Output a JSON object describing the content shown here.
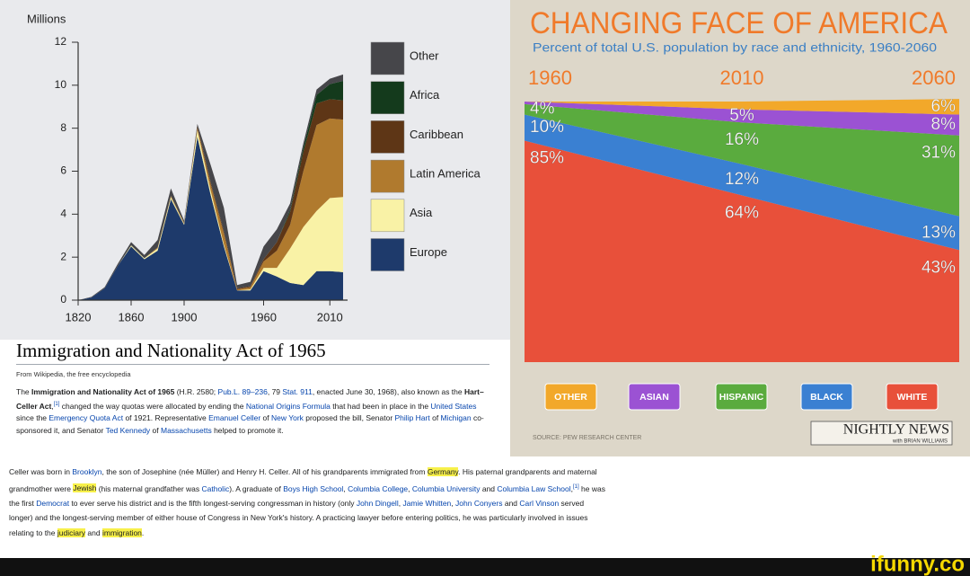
{
  "chart_data": [
    {
      "type": "area",
      "stacked": true,
      "ylabel": "Millions",
      "x": [
        1820,
        1830,
        1840,
        1850,
        1860,
        1870,
        1880,
        1890,
        1900,
        1910,
        1920,
        1930,
        1940,
        1950,
        1960,
        1970,
        1980,
        1990,
        2000,
        2010,
        2020
      ],
      "xlim": [
        1820,
        2020
      ],
      "xticks": [
        1820,
        1860,
        1900,
        1960,
        2010
      ],
      "ylim": [
        0,
        12
      ],
      "yticks": [
        0,
        2,
        4,
        6,
        8,
        10,
        12
      ],
      "series": [
        {
          "name": "Europe",
          "color": "#1e3a6b",
          "values": [
            0,
            0.12,
            0.55,
            1.6,
            2.5,
            1.9,
            2.3,
            4.7,
            3.5,
            7.6,
            4.9,
            2.5,
            0.45,
            0.45,
            1.35,
            1.1,
            0.8,
            0.7,
            1.35,
            1.35,
            1.3
          ]
        },
        {
          "name": "Asia",
          "color": "#f9f2a6",
          "values": [
            0,
            0,
            0,
            0,
            0.05,
            0.05,
            0.1,
            0.1,
            0.05,
            0.3,
            0.2,
            0.1,
            0,
            0.05,
            0.15,
            0.4,
            1.6,
            2.7,
            2.8,
            3.4,
            3.5
          ]
        },
        {
          "name": "Latin America",
          "color": "#b07a2e",
          "values": [
            0,
            0,
            0,
            0,
            0,
            0,
            0.05,
            0.05,
            0.05,
            0.1,
            0.3,
            0.5,
            0.05,
            0.1,
            0.3,
            0.8,
            1.1,
            2.6,
            4.0,
            3.7,
            3.6
          ]
        },
        {
          "name": "Caribbean",
          "color": "#5e3616",
          "values": [
            0,
            0,
            0,
            0,
            0,
            0,
            0,
            0,
            0,
            0.1,
            0.1,
            0.1,
            0.05,
            0.05,
            0.1,
            0.4,
            0.6,
            0.9,
            1.0,
            0.9,
            0.9
          ]
        },
        {
          "name": "Africa",
          "color": "#143a1c",
          "values": [
            0,
            0,
            0,
            0,
            0,
            0,
            0,
            0,
            0,
            0,
            0,
            0,
            0,
            0,
            0,
            0,
            0.1,
            0.2,
            0.4,
            0.7,
            0.9
          ]
        },
        {
          "name": "Other",
          "color": "#46464a",
          "values": [
            0,
            0.03,
            0.05,
            0.1,
            0.15,
            0.15,
            0.35,
            0.35,
            0.1,
            0.1,
            0.8,
            1.1,
            0.15,
            0.2,
            0.6,
            0.6,
            0.3,
            0.2,
            0.25,
            0.25,
            0.3
          ]
        }
      ]
    },
    {
      "type": "area",
      "stacked": true,
      "title": "CHANGING FACE OF AMERICA",
      "subtitle": "Percent of total U.S. population by race and ethnicity, 1960-2060",
      "x": [
        1960,
        2010,
        2060
      ],
      "xlim": [
        1960,
        2060
      ],
      "xticks": [
        1960,
        2010,
        2060
      ],
      "ylim": [
        0,
        100
      ],
      "series": [
        {
          "name": "WHITE",
          "color": "#e8503a",
          "values": [
            85,
            64,
            43
          ],
          "value_labels": [
            "85%",
            "64%",
            "43%"
          ]
        },
        {
          "name": "BLACK",
          "color": "#3a80d2",
          "values": [
            10,
            12,
            13
          ],
          "value_labels": [
            "10%",
            "12%",
            "13%"
          ]
        },
        {
          "name": "HISPANIC",
          "color": "#5aab3e",
          "values": [
            4,
            16,
            31
          ],
          "value_labels": [
            "4%",
            "16%",
            "31%"
          ]
        },
        {
          "name": "ASIAN",
          "color": "#9b52d3",
          "values": [
            1,
            5,
            8
          ],
          "value_labels": [
            null,
            "5%",
            "8%"
          ]
        },
        {
          "name": "OTHER",
          "color": "#f2a82a",
          "values": [
            0,
            3,
            6
          ],
          "value_labels": [
            null,
            null,
            "6%"
          ]
        }
      ],
      "source": "SOURCE: PEW RESEARCH CENTER",
      "logo": {
        "title": "NIGHTLY NEWS",
        "subtitle": "with BRIAN WILLIAMS"
      }
    }
  ],
  "article": {
    "title": "Immigration and Nationality Act of 1965",
    "tagline": "From Wikipedia, the free encyclopedia",
    "paragraphs": [
      [
        "The ",
        {
          "text": "Immigration and Nationality Act of 1965",
          "kind": "bold"
        },
        " (H.R. 2580; ",
        {
          "text": "Pub.L. 89–236",
          "kind": "link"
        },
        ", 79 ",
        {
          "text": "Stat.",
          "kind": "link"
        },
        " ",
        {
          "text": "911",
          "kind": "link"
        },
        ", enacted June 30, 1968), also known as the ",
        {
          "text": "Hart–Celler Act",
          "kind": "bold"
        },
        ",",
        {
          "text": "[1]",
          "kind": "sup"
        },
        " changed the way quotas were allocated by ending the ",
        {
          "text": "National Origins Formula",
          "kind": "link"
        },
        " that had been in place in the ",
        {
          "text": "United States",
          "kind": "link"
        },
        " since the ",
        {
          "text": "Emergency Quota Act",
          "kind": "link"
        },
        " of 1921. Representative ",
        {
          "text": "Emanuel Celler",
          "kind": "link"
        },
        " of ",
        {
          "text": "New York",
          "kind": "link"
        },
        " proposed the bill, Senator ",
        {
          "text": "Philip Hart",
          "kind": "link"
        },
        " of ",
        {
          "text": "Michigan",
          "kind": "link"
        },
        " co-sponsored it, and Senator ",
        {
          "text": "Ted Kennedy",
          "kind": "link"
        },
        " of ",
        {
          "text": "Massachusetts",
          "kind": "link"
        },
        " helped to promote it."
      ],
      [
        "Celler was born in ",
        {
          "text": "Brooklyn",
          "kind": "link"
        },
        ", the son of Josephine (née Müller) and Henry H. Celler. All of his grandparents immigrated from ",
        {
          "text": "Germany",
          "kind": "highlight"
        },
        ". His paternal grandparents and maternal grandmother were ",
        {
          "text": "Jewish",
          "kind": "highlight"
        },
        " (his maternal grandfather was ",
        {
          "text": "Catholic",
          "kind": "link"
        },
        "). A graduate of ",
        {
          "text": "Boys High School",
          "kind": "link"
        },
        ", ",
        {
          "text": "Columbia College",
          "kind": "link"
        },
        ", ",
        {
          "text": "Columbia University",
          "kind": "link"
        },
        " and ",
        {
          "text": "Columbia Law School",
          "kind": "link"
        },
        ",",
        {
          "text": "[1]",
          "kind": "sup"
        },
        " he was the first ",
        {
          "text": "Democrat",
          "kind": "link"
        },
        " to ever serve his district and is the fifth longest-serving congressman in history (only ",
        {
          "text": "John Dingell",
          "kind": "link"
        },
        ", ",
        {
          "text": "Jamie Whitten",
          "kind": "link"
        },
        ", ",
        {
          "text": "John Conyers",
          "kind": "link"
        },
        " and ",
        {
          "text": "Carl Vinson",
          "kind": "link"
        },
        " served longer) and the longest-serving member of either house of Congress in New York's history. A practicing lawyer before entering politics, he was particularly involved in issues relating to the ",
        {
          "text": "judiciary",
          "kind": "highlight"
        },
        " and ",
        {
          "text": "immigration",
          "kind": "highlight"
        },
        "."
      ]
    ]
  },
  "watermark": "ifunny.co"
}
